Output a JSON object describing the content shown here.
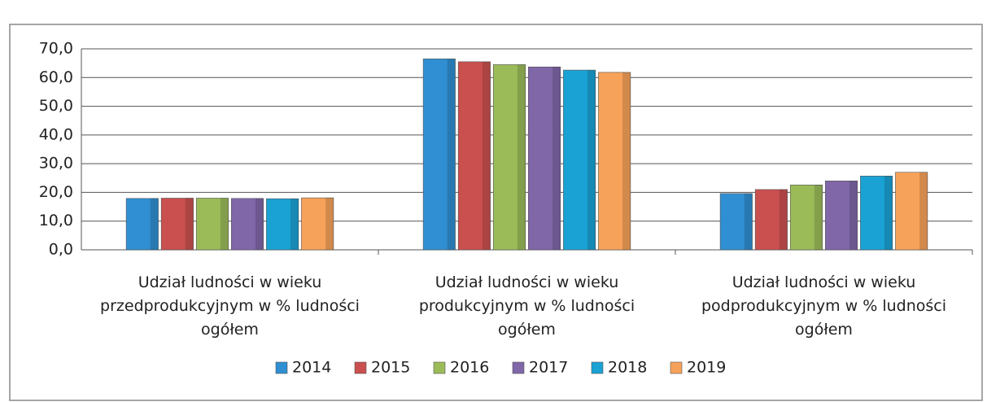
{
  "chart_data": {
    "type": "bar",
    "categories": [
      "Udział ludności w wieku\nprzedprodukcyjnym w % ludności\nogółem",
      "Udział ludności w wieku\nprodukcyjnym w % ludności\nogółem",
      "Udział ludności w wieku\npodprodukcyjnym w % ludności\nogółem"
    ],
    "series": [
      {
        "name": "2014",
        "color": "#2f8fd2",
        "values": [
          17.9,
          66.5,
          19.6
        ]
      },
      {
        "name": "2015",
        "color": "#c9504f",
        "values": [
          18.0,
          65.5,
          21.0
        ]
      },
      {
        "name": "2016",
        "color": "#9bbb59",
        "values": [
          18.0,
          64.5,
          22.6
        ]
      },
      {
        "name": "2017",
        "color": "#8067a8",
        "values": [
          17.9,
          63.7,
          24.0
        ]
      },
      {
        "name": "2018",
        "color": "#1aa2d4",
        "values": [
          17.8,
          62.6,
          25.7
        ]
      },
      {
        "name": "2019",
        "color": "#f7a25a",
        "values": [
          18.1,
          61.8,
          27.0
        ]
      }
    ],
    "ylim": [
      0,
      70
    ],
    "yticks": [
      {
        "value": 0,
        "label": "0,0"
      },
      {
        "value": 10,
        "label": "10,0"
      },
      {
        "value": 20,
        "label": "20,0"
      },
      {
        "value": 30,
        "label": "30,0"
      },
      {
        "value": 40,
        "label": "40,0"
      },
      {
        "value": 50,
        "label": "50,0"
      },
      {
        "value": 60,
        "label": "60,0"
      },
      {
        "value": 70,
        "label": "70,0"
      }
    ],
    "grid": true,
    "legend": "bottom"
  }
}
